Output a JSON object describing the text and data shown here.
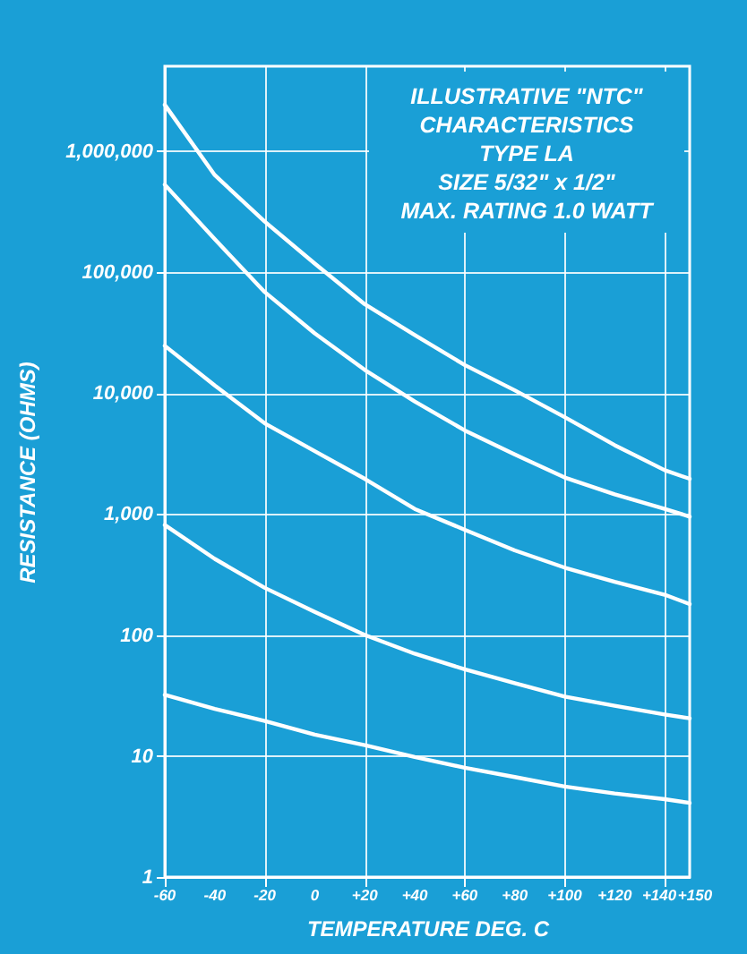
{
  "chart_data": {
    "type": "line",
    "title": "ILLUSTRATIVE \"NTC\" CHARACTERISTICS",
    "annotations": [
      "TYPE LA",
      "SIZE 5/32\" x 1/2\"",
      "MAX. RATING 1.0 WATT"
    ],
    "xlabel": "TEMPERATURE DEG. C",
    "ylabel": "RESISTANCE (OHMS)",
    "x": [
      -60,
      -40,
      -20,
      0,
      20,
      40,
      60,
      80,
      100,
      120,
      140,
      150
    ],
    "series": [
      {
        "color": "#ffffff",
        "values": [
          2400000,
          630000,
          260000,
          117000,
          54000,
          30000,
          17000,
          10500,
          6300,
          3700,
          2300,
          1950
        ]
      },
      {
        "color": "#ffffff",
        "values": [
          525000,
          186000,
          68000,
          31000,
          15500,
          8500,
          4900,
          3100,
          2000,
          1450,
          1100,
          950
        ]
      },
      {
        "color": "#ffffff",
        "values": [
          24500,
          11500,
          5600,
          3300,
          1950,
          1100,
          740,
          500,
          360,
          275,
          215,
          180
        ]
      },
      {
        "color": "#ffffff",
        "values": [
          810,
          425,
          245,
          155,
          100,
          70,
          52,
          40,
          31,
          26,
          22,
          20.5
        ]
      },
      {
        "color": "#ffffff",
        "values": [
          32,
          24.5,
          19.5,
          15,
          12.3,
          9.8,
          8,
          6.7,
          5.6,
          4.9,
          4.4,
          4.1
        ]
      }
    ],
    "log": "y",
    "grid": true,
    "marker": "none",
    "line_style": "solid",
    "xlim": [
      -60,
      150
    ],
    "ylim": [
      1,
      5000000
    ],
    "xticks": [
      -60,
      -40,
      -20,
      0,
      {
        "value": 20,
        "label": "+20"
      },
      {
        "value": 40,
        "label": "+40"
      },
      {
        "value": 60,
        "label": "+60"
      },
      {
        "value": 80,
        "label": "+80"
      },
      {
        "value": 100,
        "label": "+100"
      },
      {
        "value": 120,
        "label": "+120"
      },
      {
        "value": 140,
        "label": "+140"
      },
      {
        "value": 150,
        "label": "+150"
      }
    ],
    "yticks": [
      1,
      10,
      100,
      {
        "value": 1000,
        "label": "1,000"
      },
      {
        "value": 10000,
        "label": "10,000"
      },
      {
        "value": 100000,
        "label": "100,000"
      },
      {
        "value": 1000000,
        "label": "1,000,000"
      }
    ]
  }
}
